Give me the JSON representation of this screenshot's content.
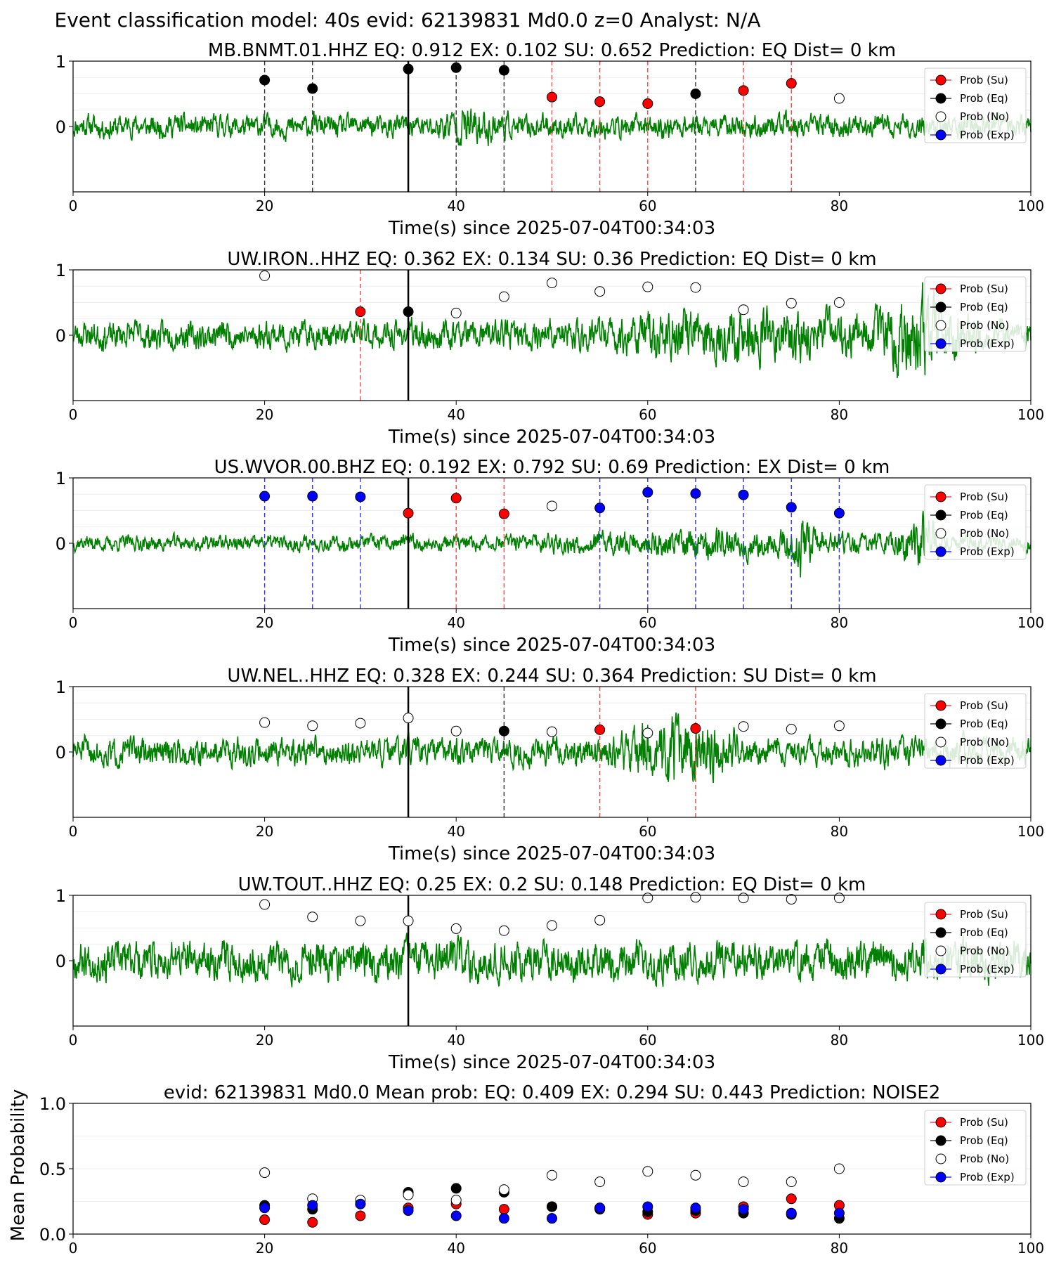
{
  "figure_title": "Event classification model: 40s evid: 62139831 Md0.0 z=0 Analyst: N/A",
  "colors": {
    "waveform": "#008000",
    "su": "#ff0000",
    "eq": "#000000",
    "no": "#ffffff",
    "exp": "#0000ff",
    "su_line": "#ff4444",
    "eq_line": "#333333",
    "exp_line": "#3333ff"
  },
  "legend": [
    "Prob (Su)",
    "Prob (Eq)",
    "Prob (No)",
    "Prob (Exp)"
  ],
  "chart_data": [
    {
      "type": "scatter",
      "title": "MB.BNMT.01.HHZ   EQ: 0.912  EX: 0.102  SU: 0.652   Prediction: EQ    Dist= 0 km",
      "xlabel": "Time(s) since 2025-07-04T00:34:03",
      "ylabel": "",
      "xlim": [
        0,
        100
      ],
      "ylim": [
        -1,
        1
      ],
      "xticks": [
        0,
        20,
        40,
        60,
        80,
        100
      ],
      "yticks": [
        0,
        1
      ],
      "noise_amp": 0.18,
      "noise_seed": 11,
      "bursts": [
        [
          35,
          48,
          0.35
        ]
      ],
      "arrival_line": 35,
      "points": [
        {
          "t": 20,
          "cls": "eq",
          "p": 0.71
        },
        {
          "t": 25,
          "cls": "eq",
          "p": 0.58
        },
        {
          "t": 35,
          "cls": "eq",
          "p": 0.88
        },
        {
          "t": 40,
          "cls": "eq",
          "p": 0.9
        },
        {
          "t": 45,
          "cls": "eq",
          "p": 0.86
        },
        {
          "t": 50,
          "cls": "su",
          "p": 0.45
        },
        {
          "t": 55,
          "cls": "su",
          "p": 0.38
        },
        {
          "t": 60,
          "cls": "su",
          "p": 0.35
        },
        {
          "t": 65,
          "cls": "eq",
          "p": 0.5
        },
        {
          "t": 70,
          "cls": "su",
          "p": 0.55
        },
        {
          "t": 75,
          "cls": "su",
          "p": 0.66
        },
        {
          "t": 80,
          "cls": "no",
          "p": 0.43
        }
      ]
    },
    {
      "type": "scatter",
      "title": "UW.IRON..HHZ   EQ: 0.362  EX: 0.134  SU: 0.36   Prediction: EQ    Dist= 0 km",
      "xlabel": "Time(s) since 2025-07-04T00:34:03",
      "ylabel": "",
      "xlim": [
        0,
        100
      ],
      "ylim": [
        -1,
        1
      ],
      "xticks": [
        0,
        20,
        40,
        60,
        80,
        100
      ],
      "yticks": [
        0,
        1
      ],
      "noise_amp": 0.22,
      "noise_seed": 23,
      "bursts": [
        [
          40,
          100,
          0.45
        ],
        [
          82,
          95,
          0.75
        ]
      ],
      "arrival_line": 35,
      "points": [
        {
          "t": 20,
          "cls": "no",
          "p": 0.91
        },
        {
          "t": 30,
          "cls": "su",
          "p": 0.36
        },
        {
          "t": 35,
          "cls": "eq",
          "p": 0.36
        },
        {
          "t": 40,
          "cls": "no",
          "p": 0.34
        },
        {
          "t": 45,
          "cls": "no",
          "p": 0.59
        },
        {
          "t": 50,
          "cls": "no",
          "p": 0.8
        },
        {
          "t": 55,
          "cls": "no",
          "p": 0.67
        },
        {
          "t": 60,
          "cls": "no",
          "p": 0.74
        },
        {
          "t": 65,
          "cls": "no",
          "p": 0.73
        },
        {
          "t": 70,
          "cls": "no",
          "p": 0.39
        },
        {
          "t": 75,
          "cls": "no",
          "p": 0.49
        },
        {
          "t": 80,
          "cls": "no",
          "p": 0.5
        }
      ]
    },
    {
      "type": "scatter",
      "title": "US.WVOR.00.BHZ   EQ: 0.192  EX: 0.792  SU: 0.69   Prediction: EX    Dist= 0 km",
      "xlabel": "Time(s) since 2025-07-04T00:34:03",
      "ylabel": "",
      "xlim": [
        0,
        100
      ],
      "ylim": [
        -1,
        1
      ],
      "xticks": [
        0,
        20,
        40,
        60,
        80,
        100
      ],
      "yticks": [
        0,
        1
      ],
      "noise_amp": 0.12,
      "noise_seed": 37,
      "bursts": [
        [
          35,
          100,
          0.25
        ],
        [
          74,
          78,
          0.55
        ],
        [
          85,
          92,
          0.5
        ]
      ],
      "arrival_line": 35,
      "points": [
        {
          "t": 20,
          "cls": "exp",
          "p": 0.72
        },
        {
          "t": 25,
          "cls": "exp",
          "p": 0.72
        },
        {
          "t": 30,
          "cls": "exp",
          "p": 0.71
        },
        {
          "t": 35,
          "cls": "su",
          "p": 0.46
        },
        {
          "t": 40,
          "cls": "su",
          "p": 0.69
        },
        {
          "t": 45,
          "cls": "su",
          "p": 0.45
        },
        {
          "t": 50,
          "cls": "no",
          "p": 0.57
        },
        {
          "t": 55,
          "cls": "exp",
          "p": 0.54
        },
        {
          "t": 60,
          "cls": "exp",
          "p": 0.78
        },
        {
          "t": 65,
          "cls": "exp",
          "p": 0.76
        },
        {
          "t": 70,
          "cls": "exp",
          "p": 0.74
        },
        {
          "t": 75,
          "cls": "exp",
          "p": 0.55
        },
        {
          "t": 80,
          "cls": "exp",
          "p": 0.46
        }
      ]
    },
    {
      "type": "scatter",
      "title": "UW.NEL..HHZ   EQ: 0.328  EX: 0.244  SU: 0.364   Prediction: SU    Dist= 0 km",
      "xlabel": "Time(s) since 2025-07-04T00:34:03",
      "ylabel": "",
      "xlim": [
        0,
        100
      ],
      "ylim": [
        -1,
        1
      ],
      "xticks": [
        0,
        20,
        40,
        60,
        80,
        100
      ],
      "yticks": [
        0,
        1
      ],
      "noise_amp": 0.22,
      "noise_seed": 51,
      "bursts": [
        [
          54,
          72,
          0.6
        ]
      ],
      "arrival_line": 35,
      "points": [
        {
          "t": 20,
          "cls": "no",
          "p": 0.45
        },
        {
          "t": 25,
          "cls": "no",
          "p": 0.4
        },
        {
          "t": 30,
          "cls": "no",
          "p": 0.44
        },
        {
          "t": 35,
          "cls": "no",
          "p": 0.52
        },
        {
          "t": 40,
          "cls": "no",
          "p": 0.32
        },
        {
          "t": 45,
          "cls": "eq",
          "p": 0.32
        },
        {
          "t": 50,
          "cls": "no",
          "p": 0.31
        },
        {
          "t": 55,
          "cls": "su",
          "p": 0.34
        },
        {
          "t": 60,
          "cls": "no",
          "p": 0.29
        },
        {
          "t": 65,
          "cls": "su",
          "p": 0.36
        },
        {
          "t": 70,
          "cls": "no",
          "p": 0.39
        },
        {
          "t": 75,
          "cls": "no",
          "p": 0.35
        },
        {
          "t": 80,
          "cls": "no",
          "p": 0.4
        }
      ]
    },
    {
      "type": "scatter",
      "title": "UW.TOUT..HHZ   EQ: 0.25  EX: 0.2  SU: 0.148   Prediction: EQ    Dist= 0 km",
      "xlabel": "Time(s) since 2025-07-04T00:34:03",
      "ylabel": "",
      "xlim": [
        0,
        100
      ],
      "ylim": [
        -1,
        1
      ],
      "xticks": [
        0,
        20,
        40,
        60,
        80,
        100
      ],
      "yticks": [
        0,
        1
      ],
      "noise_amp": 0.3,
      "noise_seed": 67,
      "bursts": [
        [
          88,
          90,
          0.5
        ]
      ],
      "arrival_line": 35,
      "points": [
        {
          "t": 20,
          "cls": "no",
          "p": 0.86
        },
        {
          "t": 25,
          "cls": "no",
          "p": 0.67
        },
        {
          "t": 30,
          "cls": "no",
          "p": 0.61
        },
        {
          "t": 35,
          "cls": "no",
          "p": 0.61
        },
        {
          "t": 40,
          "cls": "no",
          "p": 0.49
        },
        {
          "t": 45,
          "cls": "no",
          "p": 0.46
        },
        {
          "t": 50,
          "cls": "no",
          "p": 0.54
        },
        {
          "t": 55,
          "cls": "no",
          "p": 0.62
        },
        {
          "t": 60,
          "cls": "no",
          "p": 0.96
        },
        {
          "t": 65,
          "cls": "no",
          "p": 0.97
        },
        {
          "t": 70,
          "cls": "no",
          "p": 0.96
        },
        {
          "t": 75,
          "cls": "no",
          "p": 0.94
        },
        {
          "t": 80,
          "cls": "no",
          "p": 0.96
        }
      ]
    },
    {
      "type": "scatter",
      "title": "evid: 62139831  Md0.0   Mean prob:   EQ: 0.409  EX: 0.294  SU: 0.443   Prediction: NOISE2",
      "xlabel": "",
      "ylabel": "Mean Probability",
      "xlim": [
        0,
        100
      ],
      "ylim": [
        0,
        1
      ],
      "xticks": [
        0,
        20,
        40,
        60,
        80,
        100
      ],
      "yticks": [
        0.0,
        0.5,
        1.0
      ],
      "ytick_labels": [
        "0.0",
        "0.5",
        "1.0"
      ],
      "series": [
        {
          "name": "Prob (Su)",
          "cls": "su",
          "x": [
            20,
            25,
            30,
            35,
            40,
            45,
            50,
            55,
            60,
            65,
            70,
            75,
            80
          ],
          "y": [
            0.11,
            0.09,
            0.14,
            0.2,
            0.23,
            0.19,
            0.21,
            0.2,
            0.15,
            0.16,
            0.21,
            0.27,
            0.22
          ]
        },
        {
          "name": "Prob (Eq)",
          "cls": "eq",
          "x": [
            20,
            25,
            30,
            35,
            40,
            45,
            50,
            55,
            60,
            65,
            70,
            75,
            80
          ],
          "y": [
            0.22,
            0.19,
            0.23,
            0.32,
            0.35,
            0.32,
            0.21,
            0.19,
            0.17,
            0.18,
            0.16,
            0.15,
            0.12
          ]
        },
        {
          "name": "Prob (No)",
          "cls": "no",
          "x": [
            20,
            25,
            30,
            35,
            40,
            45,
            50,
            55,
            60,
            65,
            70,
            75,
            80
          ],
          "y": [
            0.47,
            0.27,
            0.26,
            0.3,
            0.26,
            0.34,
            0.45,
            0.4,
            0.48,
            0.45,
            0.4,
            0.4,
            0.5
          ]
        },
        {
          "name": "Prob (Exp)",
          "cls": "exp",
          "x": [
            20,
            25,
            30,
            35,
            40,
            45,
            50,
            55,
            60,
            65,
            70,
            75,
            80
          ],
          "y": [
            0.2,
            0.22,
            0.23,
            0.18,
            0.14,
            0.12,
            0.12,
            0.2,
            0.21,
            0.2,
            0.19,
            0.16,
            0.16
          ]
        }
      ]
    }
  ]
}
